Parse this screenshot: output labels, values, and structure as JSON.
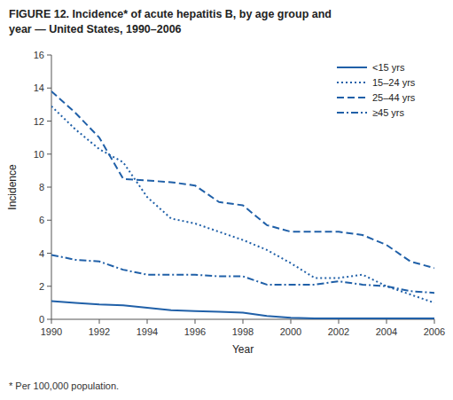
{
  "chart_data": {
    "type": "line",
    "title": "FIGURE 12. Incidence* of acute hepatitis B, by age group and",
    "subtitle": "year — United States, 1990–2006",
    "annotations": [
      "* Per 100,000 population."
    ],
    "x_label": "Year",
    "y_label": "Incidence",
    "color": "#2060a8",
    "x": [
      1990,
      1991,
      1992,
      1993,
      1994,
      1995,
      1996,
      1997,
      1998,
      1999,
      2000,
      2001,
      2002,
      2003,
      2004,
      2005,
      2006
    ],
    "series": [
      {
        "name": "<15 yrs",
        "line_style": "solid",
        "values": [
          1.1,
          1.0,
          0.9,
          0.85,
          0.7,
          0.55,
          0.5,
          0.45,
          0.4,
          0.2,
          0.1,
          0.05,
          0.05,
          0.05,
          0.05,
          0.05,
          0.05
        ]
      },
      {
        "name": "15–24 yrs",
        "line_style": "dotted",
        "values": [
          12.9,
          11.5,
          10.3,
          9.5,
          7.4,
          6.1,
          5.8,
          5.3,
          4.8,
          4.2,
          3.4,
          2.5,
          2.5,
          2.7,
          2.0,
          1.5,
          1.0
        ]
      },
      {
        "name": "25–44 yrs",
        "line_style": "dashed",
        "values": [
          13.8,
          12.5,
          11.0,
          8.5,
          8.4,
          8.3,
          8.1,
          7.1,
          6.9,
          5.7,
          5.3,
          5.3,
          5.3,
          5.1,
          4.5,
          3.5,
          3.1
        ]
      },
      {
        "name": "≥45 yrs",
        "line_style": "dashdot",
        "values": [
          3.9,
          3.6,
          3.5,
          3.0,
          2.7,
          2.7,
          2.7,
          2.6,
          2.6,
          2.1,
          2.1,
          2.1,
          2.3,
          2.1,
          2.0,
          1.7,
          1.6
        ]
      }
    ],
    "xlim": [
      1990,
      2006
    ],
    "xticks": [
      1990,
      1992,
      1994,
      1996,
      1998,
      2000,
      2002,
      2004,
      2006
    ],
    "ylim": [
      0,
      16
    ],
    "yticks": [
      0,
      2,
      4,
      6,
      8,
      10,
      12,
      14,
      16
    ],
    "grid": false,
    "legend": "upper-right"
  }
}
